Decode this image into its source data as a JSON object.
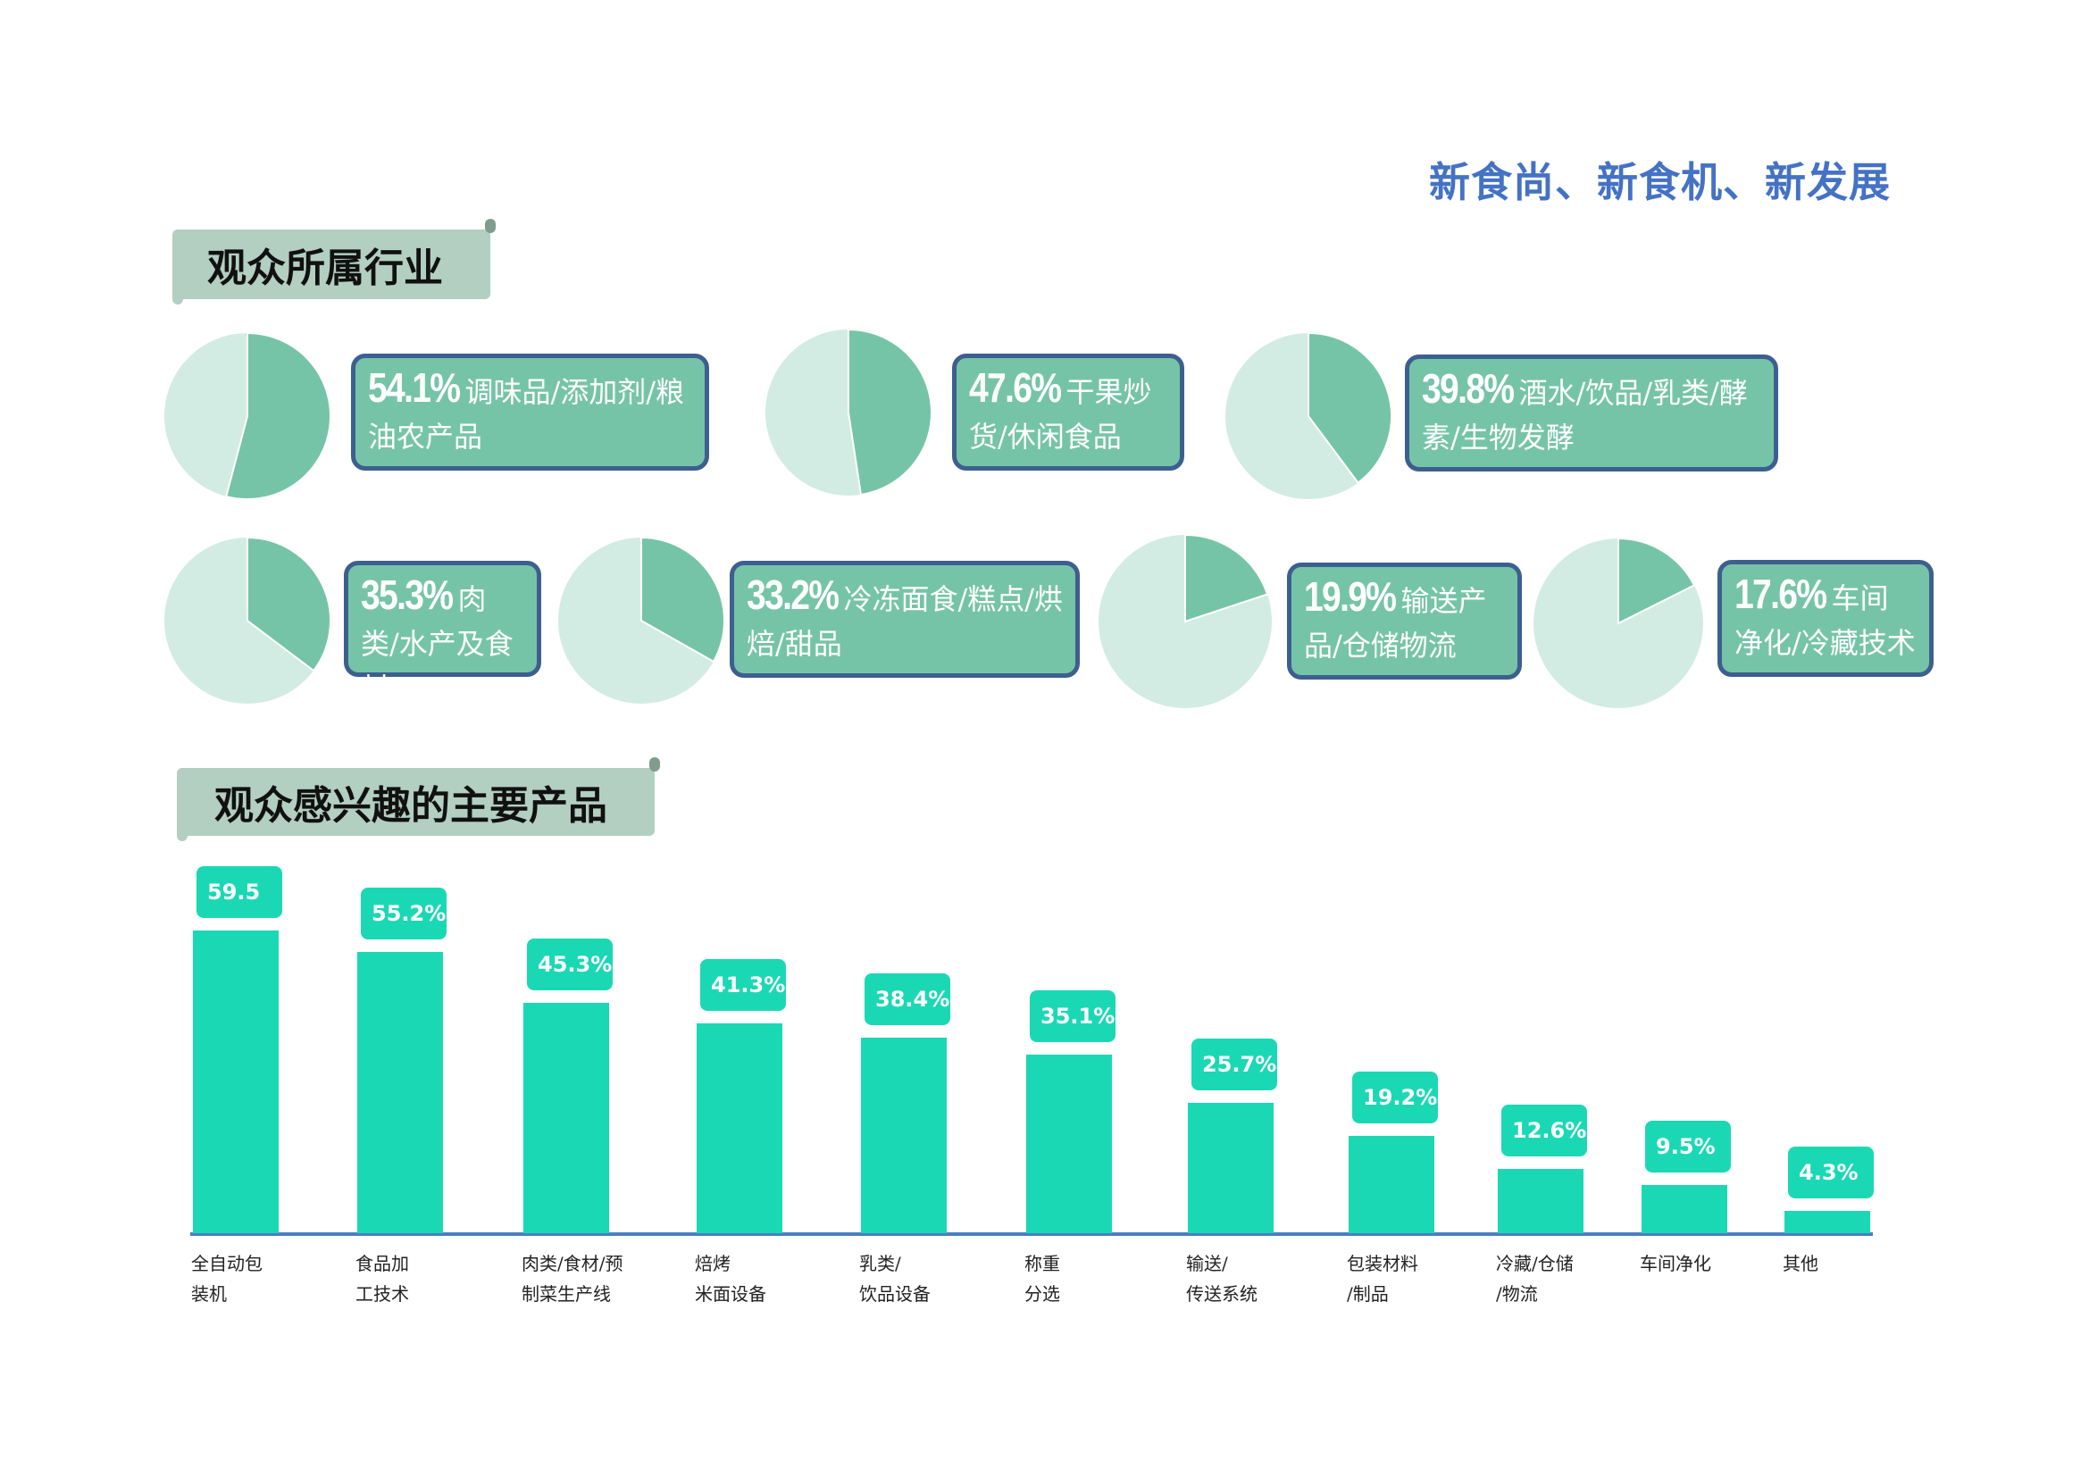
{
  "header": {
    "title": "新食尚、新食机、新发展"
  },
  "sections": {
    "industry": "观众所属行业",
    "products": "观众感兴趣的主要产品"
  },
  "colors": {
    "pie_main": "#76c4a8",
    "pie_rest": "#d3ece3",
    "box_border": "#3d5f8f",
    "bar": "#1bd8b4",
    "axis": "#4a7fbf",
    "title": "#4472c4"
  },
  "industries": [
    {
      "pct": "54.1%",
      "value": 54.1,
      "label": "调味品/添加剂/粮油农产品"
    },
    {
      "pct": "47.6%",
      "value": 47.6,
      "label": "干果炒货/休闲食品"
    },
    {
      "pct": "39.8%",
      "value": 39.8,
      "label": "酒水/饮品/乳类/酵素/生物发酵"
    },
    {
      "pct": "35.3%",
      "value": 35.3,
      "label": "肉类/水产及食材"
    },
    {
      "pct": "33.2%",
      "value": 33.2,
      "label": "冷冻面食/糕点/烘焙/甜品"
    },
    {
      "pct": "19.9%",
      "value": 19.9,
      "label": "输送产品/仓储物流"
    },
    {
      "pct": "17.6%",
      "value": 17.6,
      "label": "车间净化/冷藏技术"
    }
  ],
  "chart_data": {
    "type": "bar",
    "title": "观众感兴趣的主要产品",
    "categories": [
      "全自动包\n装机",
      "食品加\n工技术",
      "肉类/食材/预\n制菜生产线",
      "焙烤\n米面设备",
      "乳类/\n饮品设备",
      "称重\n分选",
      "输送/\n传送系统",
      "包装材料\n/制品",
      "冷藏/仓储\n/物流",
      "车间净化",
      "其他"
    ],
    "values": [
      59.5,
      55.2,
      45.3,
      41.3,
      38.4,
      35.1,
      25.7,
      19.2,
      12.6,
      9.5,
      4.3
    ],
    "labels": [
      "59.5",
      "55.2%",
      "45.3%",
      "41.3%",
      "38.4%",
      "35.1%",
      "25.7%",
      "19.2%",
      "12.6%",
      "9.5%",
      "4.3%"
    ],
    "ylim": [
      0,
      60
    ],
    "xlabel": "",
    "ylabel": "",
    "grid": false
  }
}
